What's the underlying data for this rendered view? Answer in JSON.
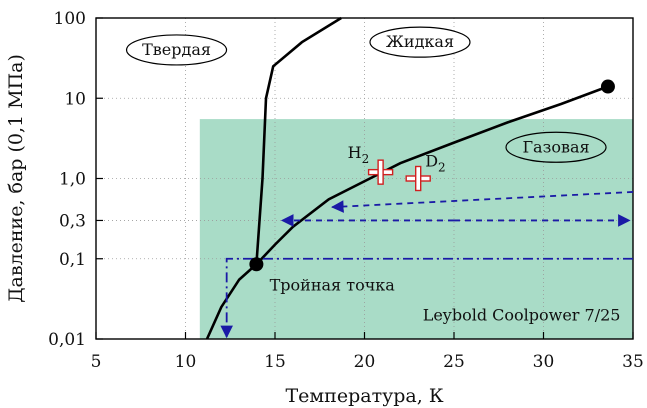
{
  "chart_data": {
    "type": "line",
    "xlabel": "Температура, К",
    "ylabel": "Давление, бар (0,1 МПа)",
    "x_ticks": [
      5,
      10,
      15,
      20,
      25,
      30,
      35
    ],
    "y_ticks": [
      {
        "value": 0.01,
        "label": "0,01"
      },
      {
        "value": 0.1,
        "label": "0,1"
      },
      {
        "value": 0.3,
        "label": "0,3"
      },
      {
        "value": 1,
        "label": "1,0"
      },
      {
        "value": 10,
        "label": "10"
      },
      {
        "value": 100,
        "label": "100"
      }
    ],
    "xlim": [
      5,
      35
    ],
    "ylim": [
      0.01,
      100
    ],
    "y_scale": "log",
    "grid": true,
    "colors": {
      "region": "#a9dcc7",
      "curve": "#000000",
      "arrows": "#1a1aa6",
      "markers": "#d02020"
    },
    "regions": {
      "solid": "Твердая",
      "liquid": "Жидкая",
      "gas": "Газовая"
    },
    "shaded_area": {
      "x": [
        10.8,
        35
      ],
      "y": [
        0.01,
        5.5
      ],
      "label": "Leybold Coolpower 7/25"
    },
    "series": [
      {
        "id": "melting",
        "points": [
          [
            11.2,
            0.01
          ],
          [
            12.0,
            0.025
          ],
          [
            13.0,
            0.055
          ],
          [
            13.96,
            0.0854
          ],
          [
            14.3,
            1.0
          ],
          [
            14.5,
            10
          ],
          [
            14.9,
            25
          ],
          [
            16.5,
            50
          ],
          [
            18.7,
            100
          ]
        ]
      },
      {
        "id": "vaporization",
        "points": [
          [
            13.96,
            0.0854
          ],
          [
            15,
            0.15
          ],
          [
            16,
            0.25
          ],
          [
            18,
            0.55
          ],
          [
            20.3,
            1.0
          ],
          [
            22,
            1.55
          ],
          [
            25,
            2.8
          ],
          [
            28,
            5.0
          ],
          [
            31,
            8.5
          ],
          [
            33.6,
            14.0
          ]
        ]
      }
    ],
    "points": [
      {
        "id": "triple",
        "x": 13.96,
        "y": 0.0854,
        "label": "Тройная точка"
      },
      {
        "id": "critical",
        "x": 33.6,
        "y": 14.0
      }
    ],
    "markers": [
      {
        "id": "h2",
        "x": 20.9,
        "y": 1.2,
        "label": "H",
        "sub": "2"
      },
      {
        "id": "d2",
        "x": 23.0,
        "y": 1.0,
        "label": "D",
        "sub": "2"
      }
    ]
  }
}
